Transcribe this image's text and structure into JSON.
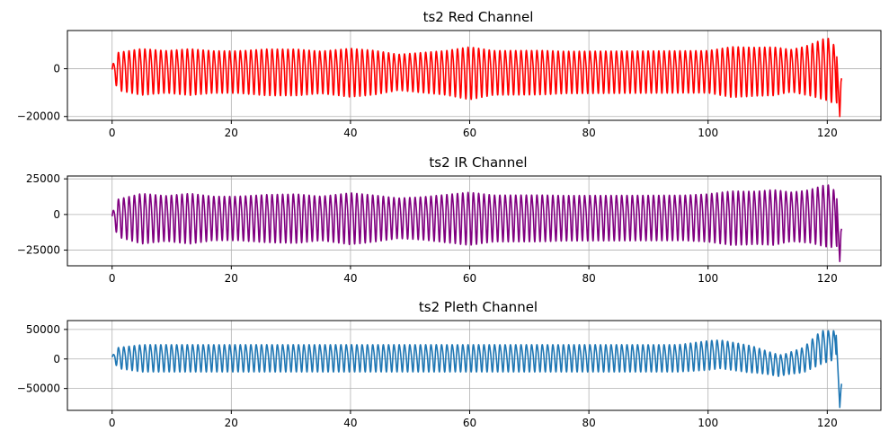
{
  "chart_data": [
    {
      "type": "line",
      "title": "ts2 Red Channel",
      "xlabel": "",
      "ylabel": "",
      "xlim": [
        -7.5,
        129
      ],
      "ylim": [
        -21600,
        16000
      ],
      "x_ticks": [
        0,
        20,
        40,
        60,
        80,
        100,
        120
      ],
      "x_tick_labels": [
        "0",
        "20",
        "40",
        "60",
        "80",
        "100",
        "120"
      ],
      "y_ticks": [
        0,
        -20000
      ],
      "y_tick_labels": [
        "0",
        "−20000"
      ],
      "grid": true,
      "color": "#ff0000",
      "series": [
        {
          "cycles_per_unit": 1.125,
          "start": 0,
          "end": 122.4,
          "amplitude_envelope": [
            [
              0,
              2000
            ],
            [
              1,
              9000
            ],
            [
              5,
              11000
            ],
            [
              9,
              10000
            ],
            [
              13,
              11000
            ],
            [
              17,
              10000
            ],
            [
              21,
              10000
            ],
            [
              26,
              11000
            ],
            [
              31,
              11000
            ],
            [
              35,
              10000
            ],
            [
              40,
              11500
            ],
            [
              44,
              10500
            ],
            [
              48,
              8500
            ],
            [
              52,
              9500
            ],
            [
              56,
              10500
            ],
            [
              60,
              12500
            ],
            [
              64,
              10500
            ],
            [
              68,
              10500
            ],
            [
              72,
              10500
            ],
            [
              76,
              10000
            ],
            [
              80,
              10000
            ],
            [
              84,
              10000
            ],
            [
              88,
              10000
            ],
            [
              92,
              10000
            ],
            [
              96,
              10000
            ],
            [
              100,
              10000
            ],
            [
              104,
              12000
            ],
            [
              108,
              11500
            ],
            [
              111,
              11500
            ],
            [
              114,
              10000
            ],
            [
              117,
              12000
            ],
            [
              120,
              15000
            ],
            [
              121,
              14000
            ],
            [
              122,
              12000
            ]
          ],
          "offset_envelope": [
            [
              0,
              -500
            ],
            [
              60,
              -1000
            ],
            [
              106,
              -500
            ],
            [
              116,
              0
            ],
            [
              120,
              1000
            ],
            [
              121.5,
              -2000
            ]
          ],
          "end_points": [
            [
              121.6,
              5000
            ],
            [
              121.8,
              -6000
            ],
            [
              122.1,
              -20000
            ],
            [
              122.3,
              -5500
            ],
            [
              122.4,
              -4000
            ]
          ]
        }
      ]
    },
    {
      "type": "line",
      "title": "ts2 IR Channel",
      "xlabel": "",
      "ylabel": "",
      "xlim": [
        -7.5,
        129
      ],
      "ylim": [
        -36000,
        27000
      ],
      "x_ticks": [
        0,
        20,
        40,
        60,
        80,
        100,
        120
      ],
      "x_tick_labels": [
        "0",
        "20",
        "40",
        "60",
        "80",
        "100",
        "120"
      ],
      "y_ticks": [
        25000,
        0,
        -25000
      ],
      "y_tick_labels": [
        "25000",
        "0",
        "−25000"
      ],
      "grid": true,
      "color": "#800080",
      "series": [
        {
          "cycles_per_unit": 1.125,
          "start": 0,
          "end": 122.4,
          "amplitude_envelope": [
            [
              0,
              3000
            ],
            [
              1,
              15000
            ],
            [
              5,
              20000
            ],
            [
              9,
              18000
            ],
            [
              13,
              20000
            ],
            [
              17,
              17500
            ],
            [
              21,
              17500
            ],
            [
              26,
              19000
            ],
            [
              31,
              19500
            ],
            [
              35,
              17500
            ],
            [
              40,
              20500
            ],
            [
              44,
              18500
            ],
            [
              48,
              16000
            ],
            [
              52,
              17000
            ],
            [
              56,
              19000
            ],
            [
              60,
              21000
            ],
            [
              64,
              18500
            ],
            [
              68,
              18500
            ],
            [
              72,
              18500
            ],
            [
              76,
              18000
            ],
            [
              80,
              18000
            ],
            [
              84,
              18000
            ],
            [
              88,
              18000
            ],
            [
              92,
              18000
            ],
            [
              96,
              18000
            ],
            [
              100,
              19000
            ],
            [
              104,
              21500
            ],
            [
              108,
              21000
            ],
            [
              111,
              22000
            ],
            [
              114,
              19500
            ],
            [
              117,
              21000
            ],
            [
              120,
              25000
            ],
            [
              121,
              23000
            ],
            [
              122,
              20000
            ]
          ],
          "offset_envelope": [
            [
              0,
              -1500
            ],
            [
              60,
              -1500
            ],
            [
              106,
              -1000
            ],
            [
              116,
              0
            ],
            [
              120,
              1000
            ],
            [
              121.5,
              -2000
            ]
          ],
          "end_points": [
            [
              121.6,
              11000
            ],
            [
              121.8,
              -8000
            ],
            [
              122.1,
              -33000
            ],
            [
              122.3,
              -12000
            ],
            [
              122.4,
              -10000
            ]
          ]
        }
      ]
    },
    {
      "type": "line",
      "title": "ts2 Pleth Channel",
      "xlabel": "",
      "ylabel": "",
      "xlim": [
        -7.5,
        129
      ],
      "ylim": [
        -87000,
        65000
      ],
      "x_ticks": [
        0,
        20,
        40,
        60,
        80,
        100,
        120
      ],
      "x_tick_labels": [
        "0",
        "20",
        "40",
        "60",
        "80",
        "100",
        "120"
      ],
      "y_ticks": [
        50000,
        0,
        -50000
      ],
      "y_tick_labels": [
        "50000",
        "0",
        "−50000"
      ],
      "grid": true,
      "color": "#1f77b4",
      "series": [
        {
          "cycles_per_unit": 1.125,
          "start": 0,
          "end": 122.4,
          "amplitude_envelope": [
            [
              0,
              2000
            ],
            [
              1,
              20000
            ],
            [
              5,
              26000
            ],
            [
              10,
              26000
            ],
            [
              40,
              26000
            ],
            [
              60,
              26000
            ],
            [
              80,
              26000
            ],
            [
              95,
              26000
            ],
            [
              100,
              28000
            ],
            [
              103,
              27000
            ],
            [
              107,
              26000
            ],
            [
              110,
              22000
            ],
            [
              113,
              20000
            ],
            [
              116,
              24000
            ],
            [
              119,
              32000
            ],
            [
              121,
              28000
            ]
          ],
          "offset_envelope": [
            [
              0,
              3000
            ],
            [
              95,
              3000
            ],
            [
              102,
              10000
            ],
            [
              108,
              0
            ],
            [
              112,
              -10000
            ],
            [
              116,
              0
            ],
            [
              119,
              22000
            ],
            [
              121,
              25000
            ]
          ],
          "end_points": [
            [
              121.5,
              40000
            ],
            [
              121.8,
              -20000
            ],
            [
              122.1,
              -82000
            ],
            [
              122.3,
              -50000
            ],
            [
              122.4,
              -42000
            ]
          ]
        }
      ]
    }
  ]
}
